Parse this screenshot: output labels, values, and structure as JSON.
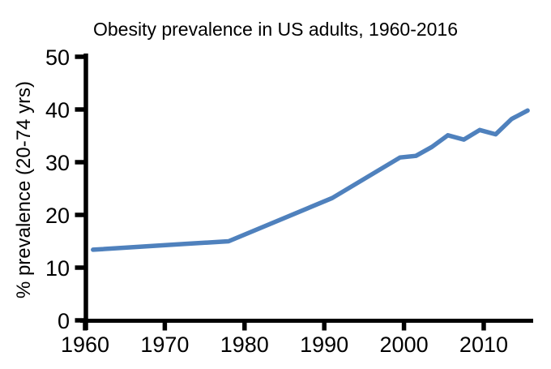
{
  "chart_data": {
    "type": "line",
    "title": "Obesity prevalence in US adults, 1960-2016",
    "xlabel": "",
    "ylabel": "% prevalence (20-74 yrs)",
    "x": [
      1961,
      1972.5,
      1978,
      1991,
      1999.5,
      2001.5,
      2003.5,
      2005.5,
      2007.5,
      2009.5,
      2011.5,
      2013.5,
      2015.5
    ],
    "y": [
      13.4,
      14.5,
      15.0,
      23.2,
      30.9,
      31.2,
      32.9,
      35.1,
      34.3,
      36.1,
      35.3,
      38.2,
      39.8
    ],
    "xticks": [
      1960,
      1970,
      1980,
      1990,
      2000,
      2010
    ],
    "yticks": [
      0,
      10,
      20,
      30,
      40,
      50
    ],
    "xlim": [
      1960,
      2016
    ],
    "ylim": [
      0,
      50
    ],
    "grid": false,
    "legend_position": "none",
    "line_color": "#4f81bd",
    "axis_color": "#000000",
    "background_color": "#ffffff"
  }
}
